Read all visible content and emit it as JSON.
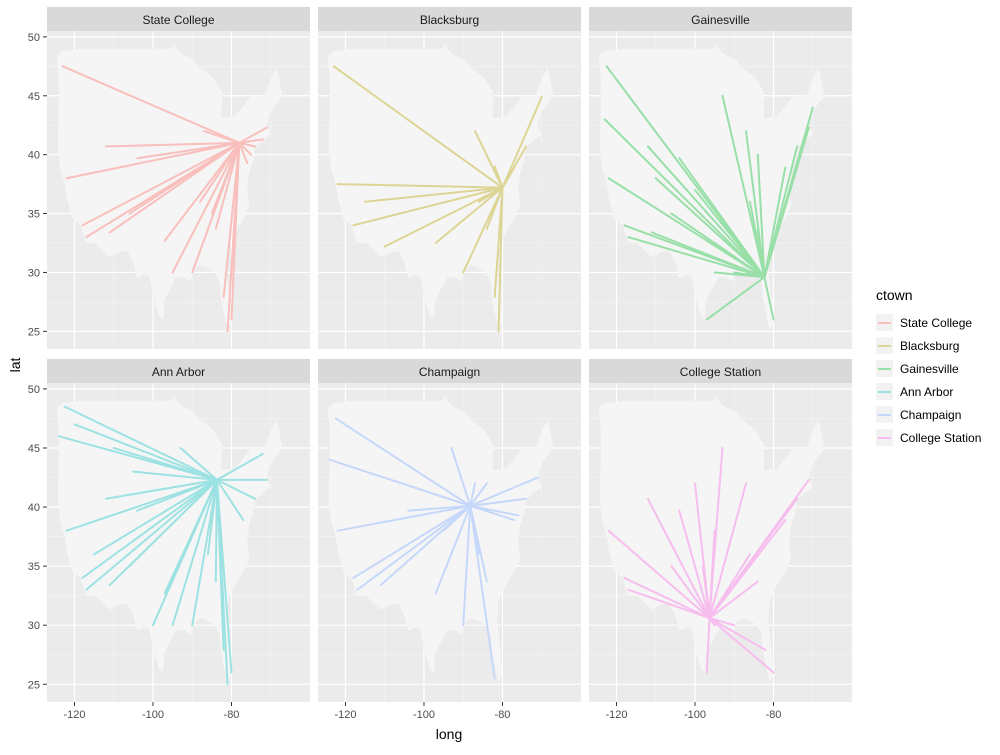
{
  "chart_data": {
    "type": "line",
    "xlabel": "long",
    "ylabel": "lat",
    "legend": {
      "title": "ctown",
      "position": "right"
    },
    "facet_layout": {
      "rows": 2,
      "cols": 3
    },
    "xlim": [
      -127,
      -60
    ],
    "ylim": [
      23.5,
      50.5
    ],
    "x_ticks": [
      -120,
      -100,
      -80
    ],
    "y_ticks": [
      25,
      30,
      35,
      40,
      45,
      50
    ],
    "grid": true,
    "facets": [
      {
        "name": "State College",
        "color": "#F8BFBC",
        "hub": [
          -78,
          41
        ],
        "destinations": [
          [
            -123,
            47.5
          ],
          [
            -122,
            38
          ],
          [
            -118,
            34
          ],
          [
            -117,
            33
          ],
          [
            -112,
            40.7
          ],
          [
            -111,
            33.4
          ],
          [
            -106,
            35
          ],
          [
            -97,
            32.7
          ],
          [
            -95,
            30
          ],
          [
            -87,
            42
          ],
          [
            -84,
            33.7
          ],
          [
            -82,
            27.9
          ],
          [
            -81,
            25
          ],
          [
            -80,
            26
          ],
          [
            -76,
            39.3
          ],
          [
            -74,
            40.7
          ],
          [
            -71,
            42.3
          ],
          [
            -72,
            41.3
          ],
          [
            -75,
            40
          ],
          [
            -90,
            30
          ],
          [
            -85,
            35
          ],
          [
            -104,
            39.7
          ],
          [
            -88,
            36
          ]
        ]
      },
      {
        "name": "Blacksburg",
        "color": "#DDD595",
        "hub": [
          -80,
          37.2
        ],
        "destinations": [
          [
            -123,
            47.5
          ],
          [
            -122,
            37.5
          ],
          [
            -118,
            34
          ],
          [
            -115,
            36
          ],
          [
            -110,
            32.2
          ],
          [
            -97,
            32.5
          ],
          [
            -90,
            30
          ],
          [
            -87,
            42
          ],
          [
            -84,
            33.7
          ],
          [
            -82,
            27.9
          ],
          [
            -81,
            25
          ],
          [
            -82,
            39
          ],
          [
            -77,
            38.9
          ],
          [
            -74,
            40.7
          ],
          [
            -70,
            44.9
          ],
          [
            -86,
            36
          ]
        ]
      },
      {
        "name": "Gainesville",
        "color": "#98DFA8",
        "hub": [
          -82.3,
          29.6
        ],
        "destinations": [
          [
            -122.5,
            47.5
          ],
          [
            -123,
            43
          ],
          [
            -122,
            38
          ],
          [
            -118,
            34
          ],
          [
            -117,
            33
          ],
          [
            -112,
            40.7
          ],
          [
            -111,
            33.4
          ],
          [
            -106,
            35
          ],
          [
            -104,
            39.7
          ],
          [
            -97,
            32.7
          ],
          [
            -95,
            30
          ],
          [
            -97,
            26
          ],
          [
            -90,
            30
          ],
          [
            -93,
            45
          ],
          [
            -87,
            42
          ],
          [
            -84,
            33.7
          ],
          [
            -86,
            36
          ],
          [
            -84,
            40
          ],
          [
            -80,
            26
          ],
          [
            -77,
            38.9
          ],
          [
            -74,
            40.7
          ],
          [
            -71,
            42.3
          ],
          [
            -70,
            44
          ],
          [
            -100,
            37
          ],
          [
            -110,
            38
          ]
        ]
      },
      {
        "name": "Ann Arbor",
        "color": "#9DE2E3",
        "hub": [
          -83.7,
          42.3
        ],
        "destinations": [
          [
            -122.5,
            48.5
          ],
          [
            -124,
            46
          ],
          [
            -122,
            38
          ],
          [
            -118,
            34
          ],
          [
            -117,
            33
          ],
          [
            -115,
            36
          ],
          [
            -112,
            40.7
          ],
          [
            -111,
            33.4
          ],
          [
            -106,
            35
          ],
          [
            -104,
            39.7
          ],
          [
            -100,
            30
          ],
          [
            -97,
            32.7
          ],
          [
            -95,
            30
          ],
          [
            -90,
            30
          ],
          [
            -93,
            45
          ],
          [
            -87,
            42
          ],
          [
            -84,
            33.7
          ],
          [
            -86,
            36
          ],
          [
            -82,
            27.9
          ],
          [
            -80,
            26
          ],
          [
            -81,
            25
          ],
          [
            -77,
            38.9
          ],
          [
            -74,
            40.7
          ],
          [
            -71,
            42.3
          ],
          [
            -72,
            44.5
          ],
          [
            -110,
            45
          ],
          [
            -105,
            43
          ],
          [
            -120,
            47
          ]
        ]
      },
      {
        "name": "Champaign",
        "color": "#C6D8FA",
        "hub": [
          -88.2,
          40.1
        ],
        "destinations": [
          [
            -122.5,
            47.5
          ],
          [
            -124,
            44
          ],
          [
            -122,
            38
          ],
          [
            -118,
            34
          ],
          [
            -117,
            33
          ],
          [
            -111,
            33.4
          ],
          [
            -104,
            39.7
          ],
          [
            -97,
            32.7
          ],
          [
            -93,
            45
          ],
          [
            -87,
            42
          ],
          [
            -84,
            33.7
          ],
          [
            -86,
            36
          ],
          [
            -82,
            25.5
          ],
          [
            -77,
            38.9
          ],
          [
            -74,
            40.7
          ],
          [
            -71,
            42.5
          ],
          [
            -76,
            39.3
          ],
          [
            -90,
            30
          ],
          [
            -95,
            38
          ],
          [
            -84,
            42
          ]
        ]
      },
      {
        "name": "College Station",
        "color": "#F6BDEE",
        "hub": [
          -96.3,
          30.6
        ],
        "destinations": [
          [
            -122,
            38
          ],
          [
            -118,
            34
          ],
          [
            -117,
            33
          ],
          [
            -112,
            40.7
          ],
          [
            -106,
            35
          ],
          [
            -104,
            39.7
          ],
          [
            -97,
            32.7
          ],
          [
            -95,
            30
          ],
          [
            -97,
            26
          ],
          [
            -90,
            30
          ],
          [
            -93,
            45
          ],
          [
            -87,
            42
          ],
          [
            -84,
            33.7
          ],
          [
            -86,
            36
          ],
          [
            -82,
            27.9
          ],
          [
            -80,
            26
          ],
          [
            -77,
            38.9
          ],
          [
            -74,
            40.7
          ],
          [
            -71,
            42.3
          ],
          [
            -100,
            42
          ],
          [
            -95,
            38
          ],
          [
            -98,
            35
          ]
        ]
      }
    ]
  }
}
